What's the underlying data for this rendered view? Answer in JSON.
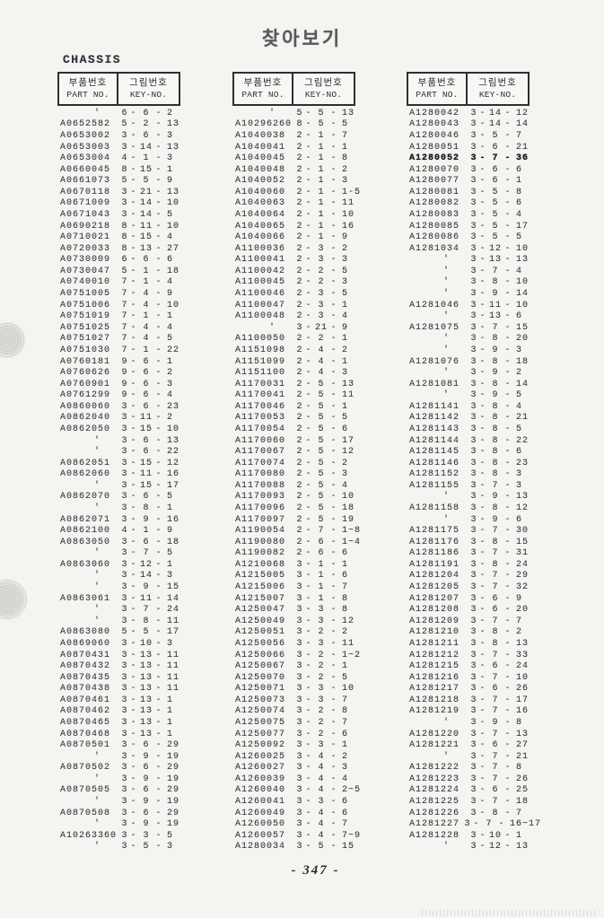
{
  "page": {
    "title": "찾아보기",
    "section": "CHASSIS",
    "page_number": "- 347 -"
  },
  "table_header": {
    "part_ko": "부품번호",
    "part_en": "PART NO.",
    "key_ko": "그림번호",
    "key_en": "KEY-NO."
  },
  "ditto_mark": "'",
  "dash": "-",
  "columns": [
    {
      "rows": [
        [
          "'",
          "6",
          "6",
          "2"
        ],
        [
          "A0652582",
          "5",
          "2",
          "13"
        ],
        [
          "A0653002",
          "3",
          "6",
          "3"
        ],
        [
          "A0653003",
          "3",
          "14",
          "13"
        ],
        [
          "A0653004",
          "4",
          "1",
          "3"
        ],
        [
          "A0660045",
          "8",
          "15",
          "1"
        ],
        [
          "A0661073",
          "5",
          "5",
          "9"
        ],
        [
          "A0670118",
          "3",
          "21",
          "13"
        ],
        [
          "A0671009",
          "3",
          "14",
          "10"
        ],
        [
          "A0671043",
          "3",
          "14",
          "5"
        ],
        [
          "A0690218",
          "8",
          "11",
          "10"
        ],
        [
          "A0710021",
          "8",
          "15",
          "4"
        ],
        [
          "A0720033",
          "8",
          "13",
          "27"
        ],
        [
          "A0730009",
          "6",
          "6",
          "6"
        ],
        [
          "A0730047",
          "5",
          "1",
          "18"
        ],
        [
          "A0740010",
          "7",
          "1",
          "4"
        ],
        [
          "A0751005",
          "7",
          "4",
          "9"
        ],
        [
          "A0751006",
          "7",
          "4",
          "10"
        ],
        [
          "A0751019",
          "7",
          "1",
          "1"
        ],
        [
          "A0751025",
          "7",
          "4",
          "4"
        ],
        [
          "A0751027",
          "7",
          "4",
          "5"
        ],
        [
          "A0751030",
          "7",
          "1",
          "22"
        ],
        [
          "A0760181",
          "9",
          "6",
          "1"
        ],
        [
          "A0760626",
          "9",
          "6",
          "2"
        ],
        [
          "A0760901",
          "9",
          "6",
          "3"
        ],
        [
          "A0761299",
          "9",
          "6",
          "4"
        ],
        [
          "A0860060",
          "3",
          "6",
          "23"
        ],
        [
          "A0862040",
          "3",
          "11",
          "2"
        ],
        [
          "A0862050",
          "3",
          "15",
          "10"
        ],
        [
          "'",
          "3",
          "6",
          "13"
        ],
        [
          "'",
          "3",
          "6",
          "22"
        ],
        [
          "A0862051",
          "3",
          "15",
          "12"
        ],
        [
          "A0862060",
          "3",
          "11",
          "16"
        ],
        [
          "'",
          "3",
          "15",
          "17"
        ],
        [
          "A0862070",
          "3",
          "6",
          "5"
        ],
        [
          "'",
          "3",
          "8",
          "1"
        ],
        [
          "A0862071",
          "3",
          "9",
          "16"
        ],
        [
          "A0862100",
          "4",
          "1",
          "9"
        ],
        [
          "A0863050",
          "3",
          "6",
          "18"
        ],
        [
          "'",
          "3",
          "7",
          "5"
        ],
        [
          "A0863060",
          "3",
          "12",
          "1"
        ],
        [
          "'",
          "3",
          "14",
          "3"
        ],
        [
          "'",
          "3",
          "9",
          "15"
        ],
        [
          "A0863061",
          "3",
          "11",
          "14"
        ],
        [
          "'",
          "3",
          "7",
          "24"
        ],
        [
          "'",
          "3",
          "8",
          "11"
        ],
        [
          "A0863080",
          "5",
          "5",
          "17"
        ],
        [
          "A0869060",
          "3",
          "10",
          "3"
        ],
        [
          "A0870431",
          "3",
          "13",
          "11"
        ],
        [
          "A0870432",
          "3",
          "13",
          "11"
        ],
        [
          "A0870435",
          "3",
          "13",
          "11"
        ],
        [
          "A0870438",
          "3",
          "13",
          "11"
        ],
        [
          "A0870461",
          "3",
          "13",
          "1"
        ],
        [
          "A0870462",
          "3",
          "13",
          "1"
        ],
        [
          "A0870465",
          "3",
          "13",
          "1"
        ],
        [
          "A0870468",
          "3",
          "13",
          "1"
        ],
        [
          "A0870501",
          "3",
          "6",
          "29"
        ],
        [
          "'",
          "3",
          "9",
          "19"
        ],
        [
          "A0870502",
          "3",
          "6",
          "29"
        ],
        [
          "'",
          "3",
          "9",
          "19"
        ],
        [
          "A0870505",
          "3",
          "6",
          "29"
        ],
        [
          "'",
          "3",
          "9",
          "19"
        ],
        [
          "A0870508",
          "3",
          "6",
          "29"
        ],
        [
          "'",
          "3",
          "9",
          "19"
        ],
        [
          "A10263360",
          "3",
          "3",
          "5"
        ],
        [
          "'",
          "3",
          "5",
          "3"
        ]
      ]
    },
    {
      "rows": [
        [
          "'",
          "5",
          "5",
          "13"
        ],
        [
          "A10296260",
          "8",
          "5",
          "5"
        ],
        [
          "A1040038",
          "2",
          "1",
          "7"
        ],
        [
          "A1040041",
          "2",
          "1",
          "1"
        ],
        [
          "A1040045",
          "2",
          "1",
          "8"
        ],
        [
          "A1040048",
          "2",
          "1",
          "2"
        ],
        [
          "A1040052",
          "2",
          "1",
          "3"
        ],
        [
          "A1040060",
          "2",
          "1",
          "1-5"
        ],
        [
          "A1040063",
          "2",
          "1",
          "11"
        ],
        [
          "A1040064",
          "2",
          "1",
          "10"
        ],
        [
          "A1040065",
          "2",
          "1",
          "16"
        ],
        [
          "A1040066",
          "2",
          "1",
          "9"
        ],
        [
          "A1100036",
          "2",
          "3",
          "2"
        ],
        [
          "A1100041",
          "2",
          "3",
          "3"
        ],
        [
          "A1100042",
          "2",
          "2",
          "5"
        ],
        [
          "A1100045",
          "2",
          "2",
          "3"
        ],
        [
          "A1100046",
          "2",
          "3",
          "5"
        ],
        [
          "A1100047",
          "2",
          "3",
          "1"
        ],
        [
          "A1100048",
          "2",
          "3",
          "4"
        ],
        [
          "'",
          "3",
          "21",
          "9"
        ],
        [
          "A1100050",
          "2",
          "2",
          "1"
        ],
        [
          "A1151098",
          "2",
          "4",
          "2"
        ],
        [
          "A1151099",
          "2",
          "4",
          "1"
        ],
        [
          "A1151100",
          "2",
          "4",
          "3"
        ],
        [
          "A1170031",
          "2",
          "5",
          "13"
        ],
        [
          "A1170041",
          "2",
          "5",
          "11"
        ],
        [
          "A1170046",
          "2",
          "5",
          "1"
        ],
        [
          "A1170053",
          "2",
          "5",
          "5"
        ],
        [
          "A1170054",
          "2",
          "5",
          "6"
        ],
        [
          "A1170060",
          "2",
          "5",
          "17"
        ],
        [
          "A1170067",
          "2",
          "5",
          "12"
        ],
        [
          "A1170074",
          "2",
          "5",
          "2"
        ],
        [
          "A1170080",
          "2",
          "5",
          "3"
        ],
        [
          "A1170088",
          "2",
          "5",
          "4"
        ],
        [
          "A1170093",
          "2",
          "5",
          "10"
        ],
        [
          "A1170096",
          "2",
          "5",
          "18"
        ],
        [
          "A1170097",
          "2",
          "5",
          "19"
        ],
        [
          "A1190054",
          "2",
          "7",
          "1~8"
        ],
        [
          "A1190080",
          "2",
          "6",
          "1~4"
        ],
        [
          "A1190082",
          "2",
          "6",
          "6"
        ],
        [
          "A1210068",
          "3",
          "1",
          "1"
        ],
        [
          "A1215005",
          "3",
          "1",
          "6"
        ],
        [
          "A1215006",
          "3",
          "1",
          "7"
        ],
        [
          "A1215007",
          "3",
          "1",
          "8"
        ],
        [
          "A1250047",
          "3",
          "3",
          "8"
        ],
        [
          "A1250049",
          "3",
          "3",
          "12"
        ],
        [
          "A1250051",
          "3",
          "2",
          "2"
        ],
        [
          "A1250056",
          "3",
          "3",
          "11"
        ],
        [
          "A1250066",
          "3",
          "2",
          "1~2"
        ],
        [
          "A1250067",
          "3",
          "2",
          "1"
        ],
        [
          "A1250070",
          "3",
          "2",
          "5"
        ],
        [
          "A1250071",
          "3",
          "3",
          "10"
        ],
        [
          "A1250073",
          "3",
          "3",
          "7"
        ],
        [
          "A1250074",
          "3",
          "2",
          "8"
        ],
        [
          "A1250075",
          "3",
          "2",
          "7"
        ],
        [
          "A1250077",
          "3",
          "2",
          "6"
        ],
        [
          "A1250092",
          "3",
          "3",
          "1"
        ],
        [
          "A1260025",
          "3",
          "4",
          "2"
        ],
        [
          "A1260027",
          "3",
          "4",
          "3"
        ],
        [
          "A1260039",
          "3",
          "4",
          "4"
        ],
        [
          "A1260040",
          "3",
          "4",
          "2~5"
        ],
        [
          "A1260041",
          "3",
          "3",
          "6"
        ],
        [
          "A1260049",
          "3",
          "4",
          "6"
        ],
        [
          "A1260050",
          "3",
          "4",
          "7"
        ],
        [
          "A1260057",
          "3",
          "4",
          "7~9"
        ],
        [
          "A1280034",
          "3",
          "5",
          "15"
        ]
      ]
    },
    {
      "rows": [
        [
          "A1280042",
          "3",
          "14",
          "12"
        ],
        [
          "A1280043",
          "3",
          "14",
          "14"
        ],
        [
          "A1280046",
          "3",
          "5",
          "7"
        ],
        [
          "A1280051",
          "3",
          "6",
          "21"
        ],
        [
          "A1280052",
          "3",
          "7",
          "36",
          "b"
        ],
        [
          "A1280070",
          "3",
          "6",
          "6"
        ],
        [
          "A1280077",
          "3",
          "6",
          "1"
        ],
        [
          "A1280081",
          "3",
          "5",
          "8"
        ],
        [
          "A1280082",
          "3",
          "5",
          "6"
        ],
        [
          "A1280083",
          "3",
          "5",
          "4"
        ],
        [
          "A1280085",
          "3",
          "5",
          "17"
        ],
        [
          "A1280086",
          "3",
          "5",
          "5"
        ],
        [
          "A1281034",
          "3",
          "12",
          "10"
        ],
        [
          "'",
          "3",
          "13",
          "13"
        ],
        [
          "'",
          "3",
          "7",
          "4"
        ],
        [
          "'",
          "3",
          "8",
          "10"
        ],
        [
          "'",
          "3",
          "9",
          "14"
        ],
        [
          "A1281046",
          "3",
          "11",
          "10"
        ],
        [
          "'",
          "3",
          "13",
          "6"
        ],
        [
          "A1281075",
          "3",
          "7",
          "15"
        ],
        [
          "'",
          "3",
          "8",
          "20"
        ],
        [
          "'",
          "3",
          "9",
          "3"
        ],
        [
          "A1281076",
          "3",
          "8",
          "18"
        ],
        [
          "'",
          "3",
          "9",
          "2"
        ],
        [
          "A1281081",
          "3",
          "8",
          "14"
        ],
        [
          "'",
          "3",
          "9",
          "5"
        ],
        [
          "A1281141",
          "3",
          "8",
          "4"
        ],
        [
          "A1281142",
          "3",
          "8",
          "21"
        ],
        [
          "A1281143",
          "3",
          "8",
          "5"
        ],
        [
          "A1281144",
          "3",
          "8",
          "22"
        ],
        [
          "A1281145",
          "3",
          "8",
          "6"
        ],
        [
          "A1281146",
          "3",
          "8",
          "23"
        ],
        [
          "A1281152",
          "3",
          "8",
          "3"
        ],
        [
          "A1281155",
          "3",
          "7",
          "3"
        ],
        [
          "'",
          "3",
          "9",
          "13"
        ],
        [
          "A1281158",
          "3",
          "8",
          "12"
        ],
        [
          "'",
          "3",
          "9",
          "6"
        ],
        [
          "A1281175",
          "3",
          "7",
          "30"
        ],
        [
          "A1281176",
          "3",
          "8",
          "15"
        ],
        [
          "A1281186",
          "3",
          "7",
          "31"
        ],
        [
          "A1281191",
          "3",
          "8",
          "24"
        ],
        [
          "A1281204",
          "3",
          "7",
          "29"
        ],
        [
          "A1281205",
          "3",
          "7",
          "32"
        ],
        [
          "A1281207",
          "3",
          "6",
          "9"
        ],
        [
          "A1281208",
          "3",
          "6",
          "20"
        ],
        [
          "A1281209",
          "3",
          "7",
          "7"
        ],
        [
          "A1281210",
          "3",
          "8",
          "2"
        ],
        [
          "A1281211",
          "3",
          "8",
          "13"
        ],
        [
          "A1281212",
          "3",
          "7",
          "33"
        ],
        [
          "A1281215",
          "3",
          "6",
          "24"
        ],
        [
          "A1281216",
          "3",
          "7",
          "10"
        ],
        [
          "A1281217",
          "3",
          "6",
          "26"
        ],
        [
          "A1281218",
          "3",
          "7",
          "17"
        ],
        [
          "A1281219",
          "3",
          "7",
          "16"
        ],
        [
          "'",
          "3",
          "9",
          "8"
        ],
        [
          "A1281220",
          "3",
          "7",
          "13"
        ],
        [
          "A1281221",
          "3",
          "6",
          "27"
        ],
        [
          "'",
          "3",
          "7",
          "21"
        ],
        [
          "A1281222",
          "3",
          "7",
          "8"
        ],
        [
          "A1281223",
          "3",
          "7",
          "26"
        ],
        [
          "A1281224",
          "3",
          "6",
          "25"
        ],
        [
          "A1281225",
          "3",
          "7",
          "18"
        ],
        [
          "A1281226",
          "3",
          "8",
          "7"
        ],
        [
          "A1281227",
          "3",
          "7",
          "16~17"
        ],
        [
          "A1281228",
          "3",
          "10",
          "1"
        ],
        [
          "'",
          "3",
          "12",
          "13"
        ]
      ]
    }
  ]
}
